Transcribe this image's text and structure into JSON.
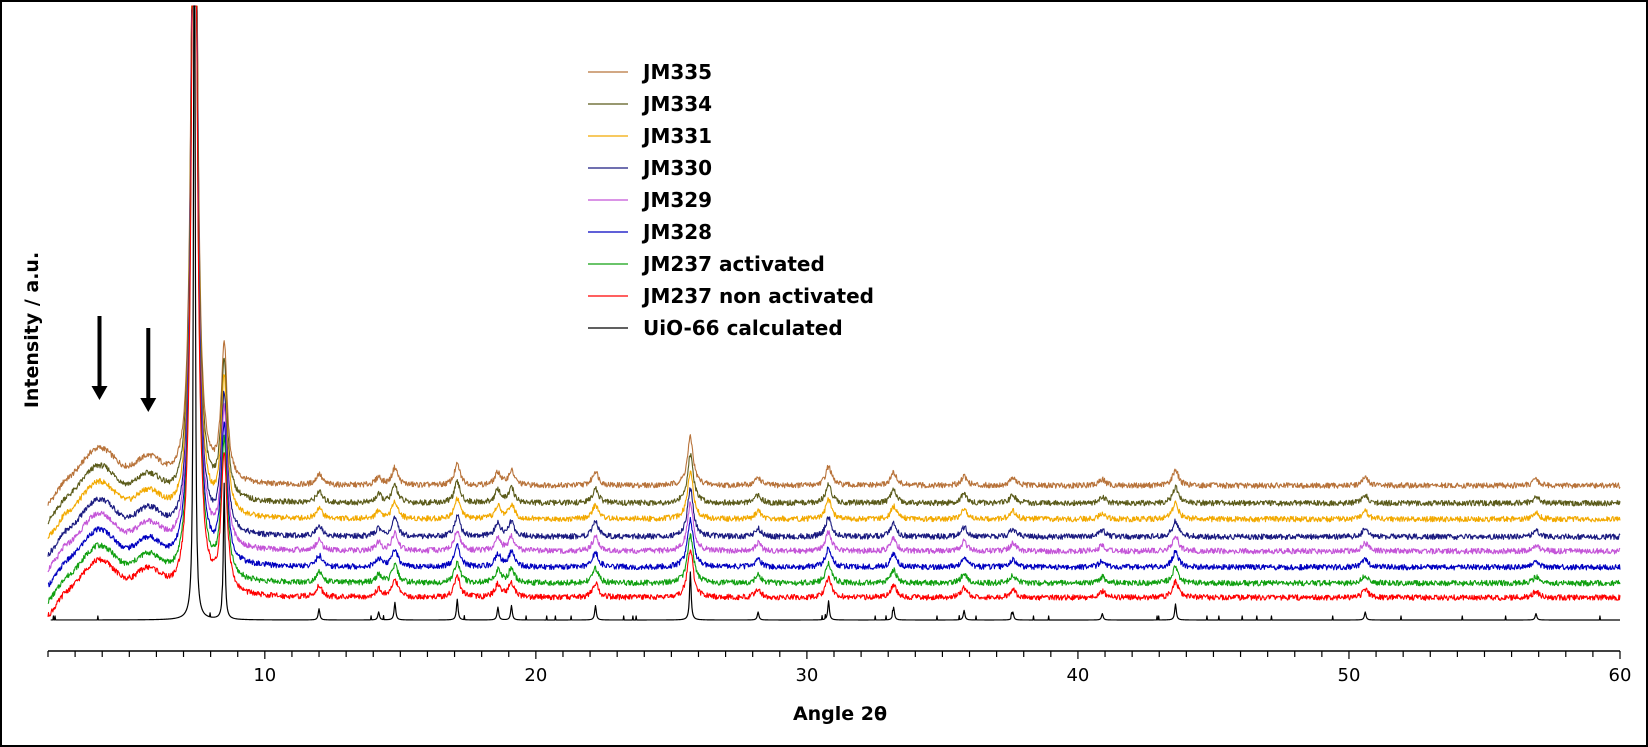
{
  "chart_data": {
    "type": "line",
    "xlabel": "Angle 2θ",
    "ylabel": "Intensity / a.u.",
    "xlim": [
      2,
      60
    ],
    "x_ticks": [
      10,
      20,
      30,
      40,
      50,
      60
    ],
    "grid": false,
    "legend_position": "top-center",
    "series": [
      {
        "name": "JM335",
        "color": "#b8733a",
        "baseline": 8.4
      },
      {
        "name": "JM334",
        "color": "#5b5b1a",
        "baseline": 7.3
      },
      {
        "name": "JM331",
        "color": "#f2a900",
        "baseline": 6.3
      },
      {
        "name": "JM330",
        "color": "#1a1a80",
        "baseline": 5.2
      },
      {
        "name": "JM329",
        "color": "#c455d8",
        "baseline": 4.3
      },
      {
        "name": "JM328",
        "color": "#0000c0",
        "baseline": 3.3
      },
      {
        "name": "JM237 activated",
        "color": "#10a010",
        "baseline": 2.3
      },
      {
        "name": "JM237 non activated",
        "color": "#ff0000",
        "baseline": 1.4
      },
      {
        "name": "UiO-66 calculated",
        "color": "#000000",
        "baseline": 0
      }
    ],
    "peaks": [
      {
        "x": 7.4,
        "height": 60
      },
      {
        "x": 8.5,
        "height": 8.5
      },
      {
        "x": 12.0,
        "height": 0.7
      },
      {
        "x": 14.2,
        "height": 0.5
      },
      {
        "x": 14.8,
        "height": 1.1
      },
      {
        "x": 17.1,
        "height": 1.3
      },
      {
        "x": 18.6,
        "height": 0.8
      },
      {
        "x": 19.1,
        "height": 0.9
      },
      {
        "x": 22.2,
        "height": 0.9
      },
      {
        "x": 25.7,
        "height": 3.0
      },
      {
        "x": 28.2,
        "height": 0.5
      },
      {
        "x": 30.8,
        "height": 1.2
      },
      {
        "x": 33.2,
        "height": 0.8
      },
      {
        "x": 35.8,
        "height": 0.6
      },
      {
        "x": 37.6,
        "height": 0.5
      },
      {
        "x": 40.9,
        "height": 0.4
      },
      {
        "x": 43.6,
        "height": 1.0
      },
      {
        "x": 50.6,
        "height": 0.5
      },
      {
        "x": 56.9,
        "height": 0.4
      }
    ],
    "annotations": [
      {
        "type": "arrow",
        "x": 3.9
      },
      {
        "type": "arrow",
        "x": 5.7
      }
    ]
  }
}
